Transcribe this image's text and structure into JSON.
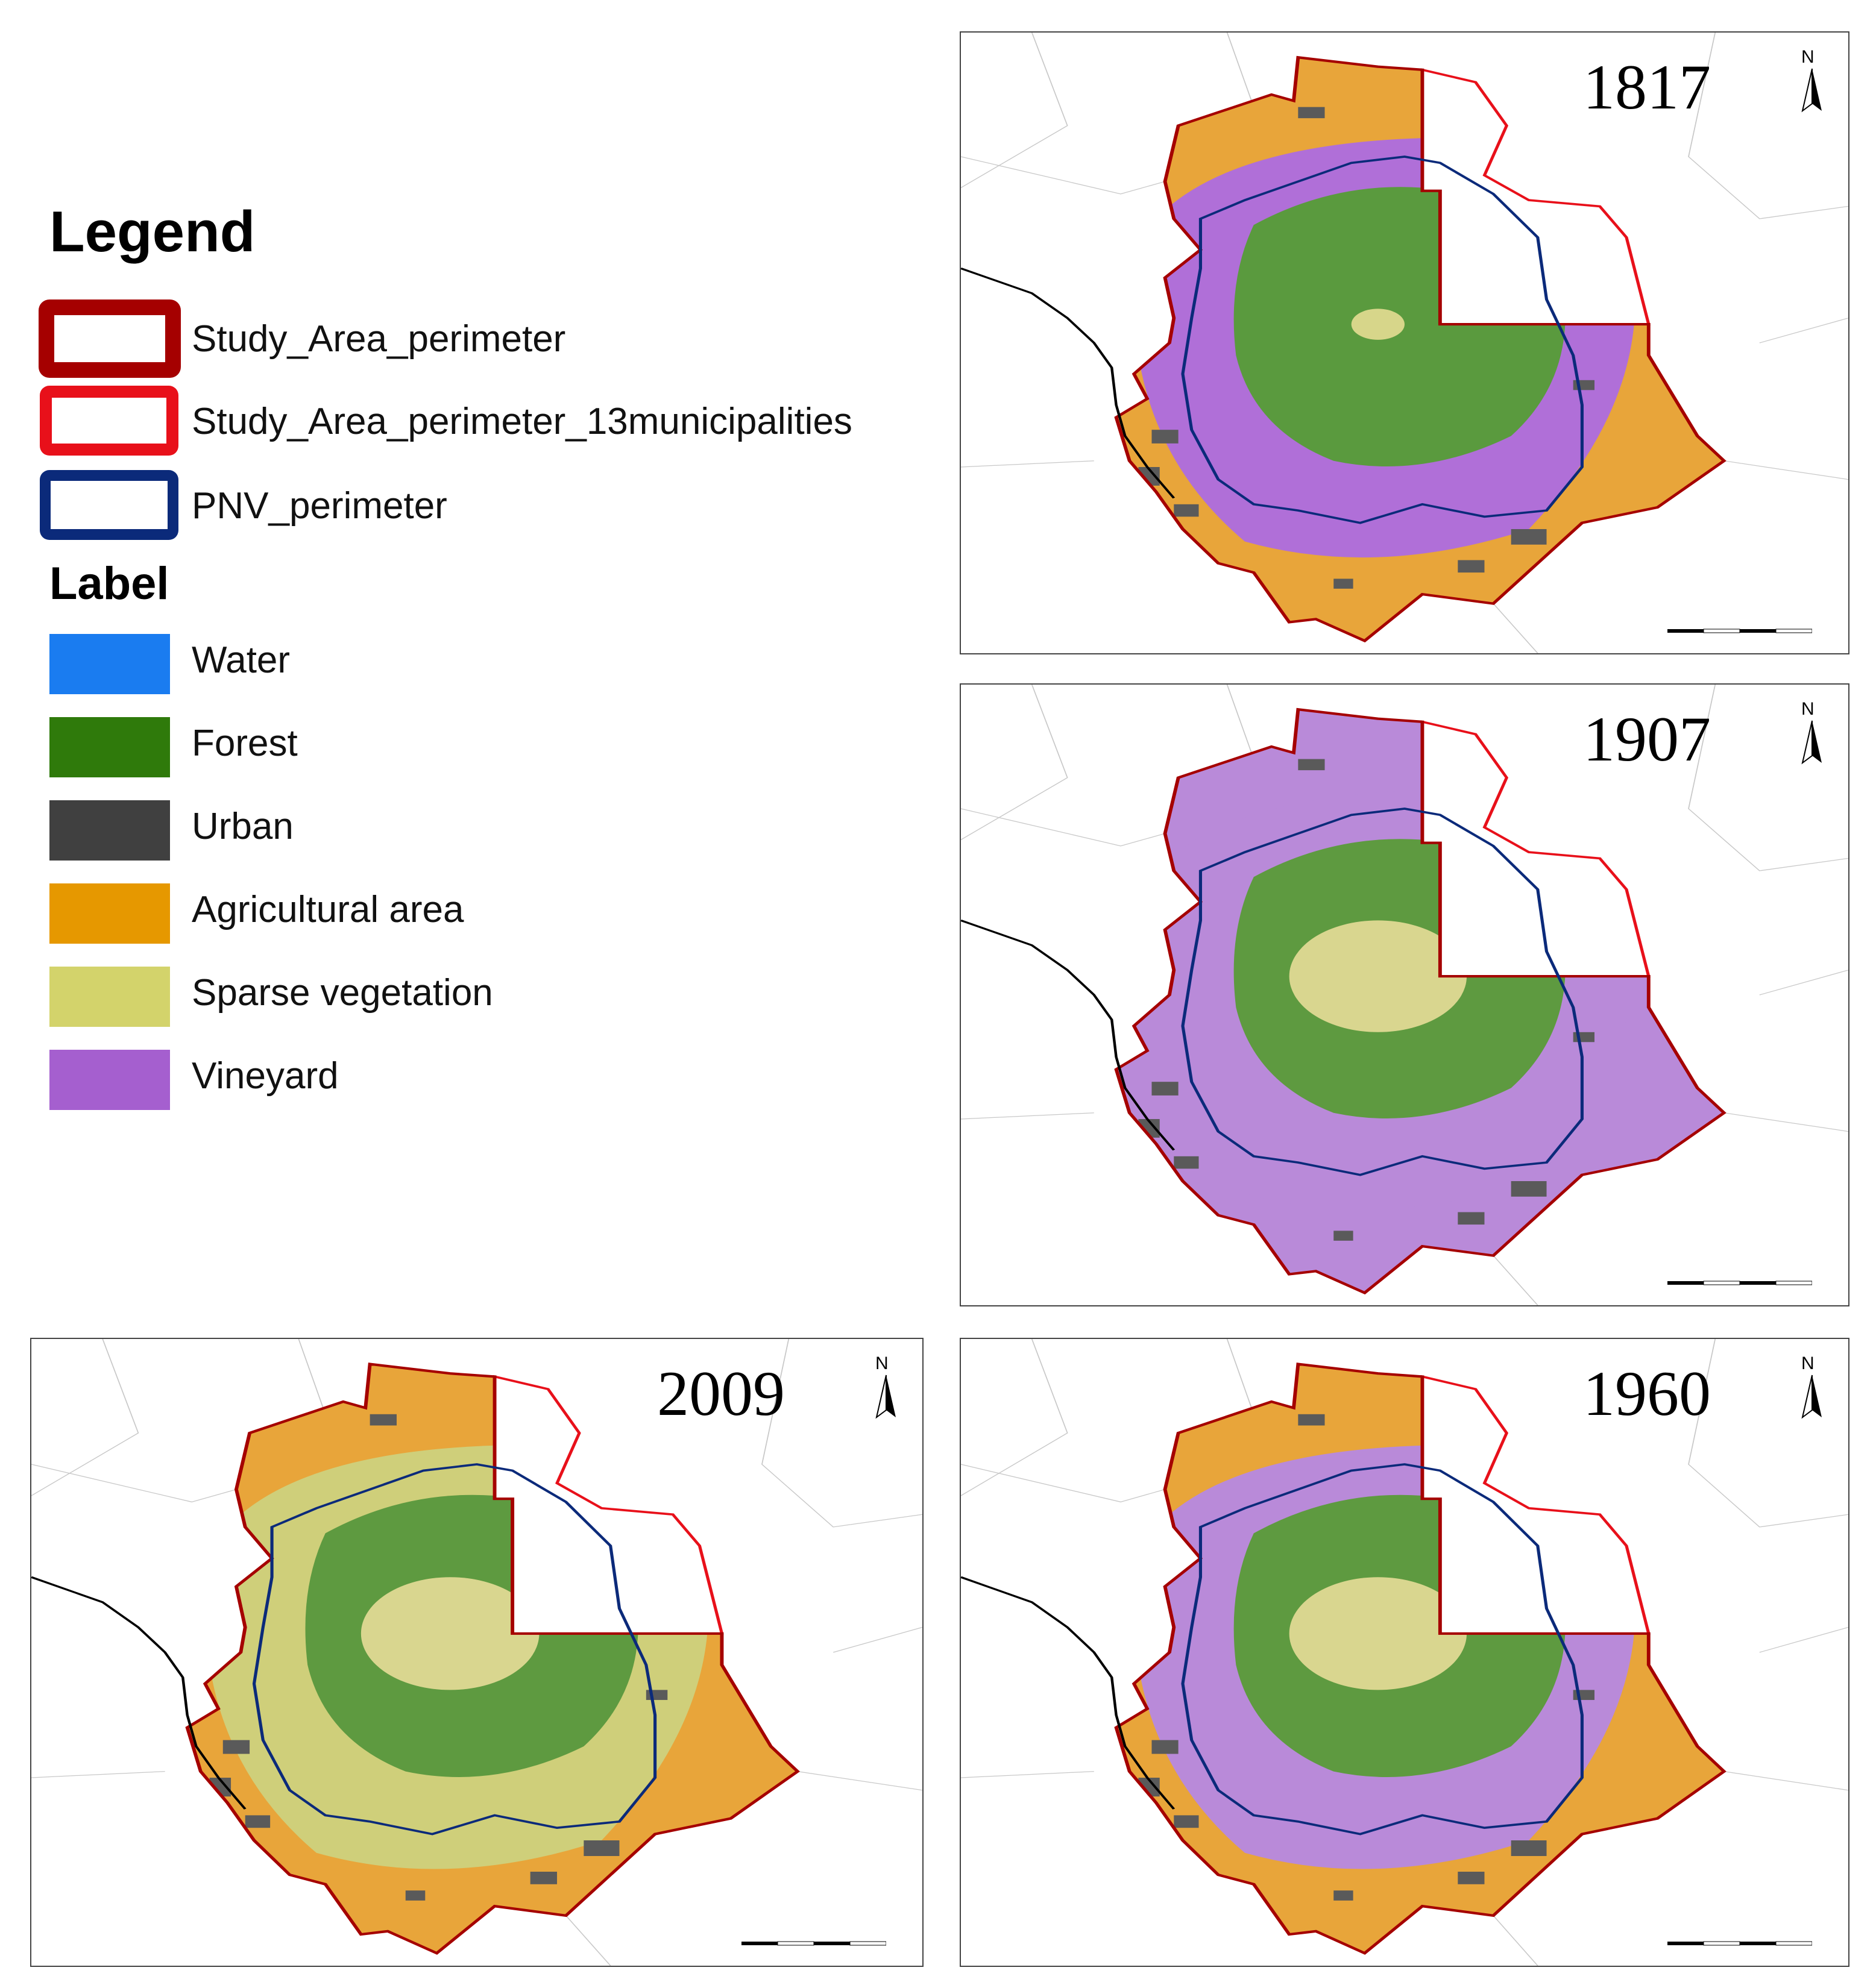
{
  "legend": {
    "title": "Legend",
    "boundaries": [
      {
        "label": "Study_Area_perimeter",
        "stroke": "#a50000",
        "icon": "thick-dark-red-outline-icon"
      },
      {
        "label": "Study_Area_perimeter_13municipalities",
        "stroke": "#e8101a",
        "icon": "red-outline-icon"
      },
      {
        "label": "PNV_perimeter",
        "stroke": "#0b2a7a",
        "icon": "navy-outline-icon"
      }
    ],
    "label_heading": "Label",
    "classes": [
      {
        "label": "Water",
        "color": "#1a7cf0"
      },
      {
        "label": "Forest",
        "color": "#2f7a0b"
      },
      {
        "label": "Urban",
        "color": "#404040"
      },
      {
        "label": "Agricultural area",
        "color": "#e69800"
      },
      {
        "label": "Sparse vegetation",
        "color": "#d3d36b"
      },
      {
        "label": "Vineyard",
        "color": "#a55fcf"
      }
    ]
  },
  "maps": [
    {
      "id": "map-1817",
      "year": "1817",
      "base": "#e8a53a",
      "ring": "#b06fd8",
      "forest": "#5a9a3e",
      "sparse": "#d7d68a",
      "north": "N"
    },
    {
      "id": "map-1907",
      "year": "1907",
      "base": "#b98ad9",
      "ring": "#b98ad9",
      "forest": "#5e9a40",
      "sparse": "#d9d68f",
      "north": "N"
    },
    {
      "id": "map-2009",
      "year": "2009",
      "base": "#e8a53a",
      "ring": "#cfcf7a",
      "forest": "#5e9a40",
      "sparse": "#d9d68f",
      "north": "N"
    },
    {
      "id": "map-1960",
      "year": "1960",
      "base": "#e8a53a",
      "ring": "#b98ad9",
      "forest": "#5e9a40",
      "sparse": "#d9d68f",
      "north": "N"
    }
  ],
  "colors": {
    "study_area": "#a50000",
    "municipalities": "#e8101a",
    "pnv": "#0b2a7a",
    "coast": "#000000",
    "urban": "#5a5a5a",
    "admin_lines": "#c8c8c8"
  }
}
